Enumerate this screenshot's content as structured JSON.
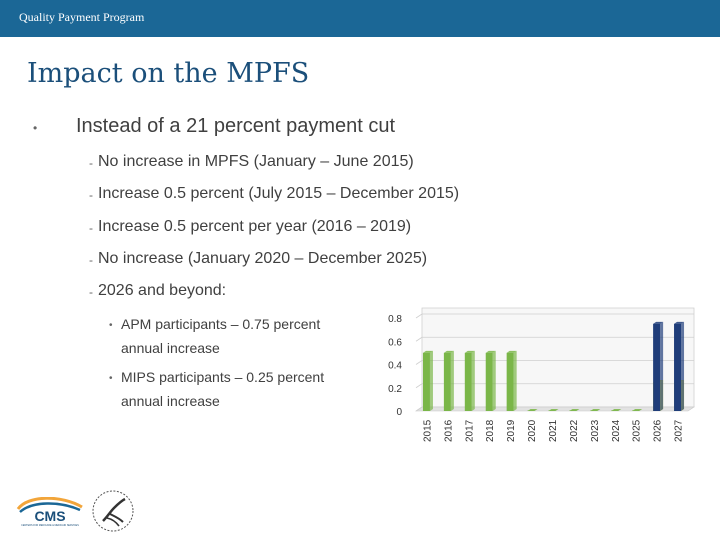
{
  "header": {
    "title": "Quality Payment Program"
  },
  "slide": {
    "title": "Impact on the MPFS",
    "bullet": "Instead of a 21 percent payment cut",
    "sub_bullets": [
      "No increase in MPFS (January – June 2015)",
      "Increase 0.5 percent (July 2015 – December 2015)",
      "Increase 0.5 percent per year (2016 – 2019)",
      "No increase (January 2020 – December 2025)",
      "2026 and beyond:"
    ],
    "sub_sub_bullets": [
      "APM participants – 0.75 percent annual increase",
      "MIPS participants – 0.25 percent annual increase"
    ]
  },
  "logos": {
    "cms": "CMS",
    "cms_sub": "CENTERS FOR MEDICARE & MEDICAID SERVICES"
  },
  "colors": {
    "header": "#1b6796",
    "title": "#1b4f7a",
    "green": "#7ab648",
    "yellow": "#f2ec1c",
    "navy": "#1f3d7a"
  },
  "chart_data": {
    "type": "bar",
    "categories": [
      "2015",
      "2016",
      "2017",
      "2018",
      "2019",
      "2020",
      "2021",
      "2022",
      "2023",
      "2024",
      "2025",
      "2026",
      "2027"
    ],
    "series": [
      {
        "values": [
          0.5,
          0.5,
          0.5,
          0.5,
          0.5,
          0,
          0,
          0,
          0,
          0,
          0,
          null,
          null
        ]
      },
      {
        "values": [
          null,
          null,
          null,
          null,
          null,
          null,
          null,
          null,
          null,
          null,
          null,
          0.25,
          0.25
        ]
      },
      {
        "values": [
          null,
          null,
          null,
          null,
          null,
          null,
          null,
          null,
          null,
          null,
          null,
          0.75,
          0.75
        ]
      }
    ],
    "yticks": [
      "0",
      "0.2",
      "0.4",
      "0.6",
      "0.8"
    ],
    "ylim": [
      0,
      0.8
    ],
    "grid": true
  }
}
